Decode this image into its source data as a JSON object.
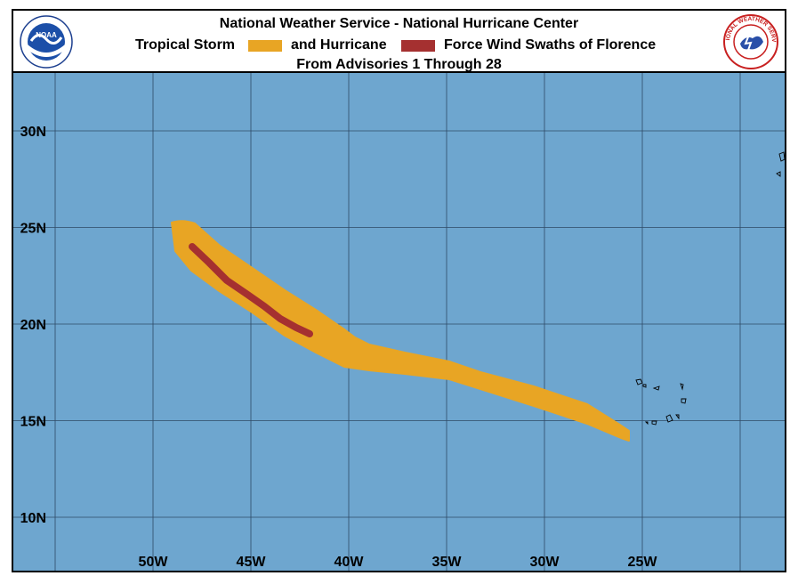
{
  "header": {
    "line1": "National Weather Service - National Hurricane Center",
    "legend_ts": "Tropical Storm",
    "legend_and": "and Hurricane",
    "legend_tail": "Force Wind Swaths of Florence",
    "line3": "From Advisories 1 Through 28",
    "ts_color": "#e8a524",
    "hu_color": "#a53030"
  },
  "logos": {
    "left_text": "NOAA",
    "right_text": "NATIONAL WEATHER SERVICE"
  },
  "map": {
    "ocean_color": "#6ea6cf",
    "grid_color": "#2f4a66",
    "lat_labels": [
      "30N",
      "25N",
      "20N",
      "15N",
      "10N"
    ],
    "lat_values": [
      30,
      25,
      20,
      15,
      10
    ],
    "lon_labels": [
      "50W",
      "45W",
      "40W",
      "35W",
      "30W",
      "25W"
    ],
    "lon_values": [
      -50,
      -45,
      -40,
      -35,
      -30,
      -25
    ],
    "lon_grid": [
      -55,
      -50,
      -45,
      -40,
      -35,
      -30,
      -25,
      -20
    ],
    "lat_grid": [
      30,
      25,
      20,
      15,
      10
    ]
  }
}
